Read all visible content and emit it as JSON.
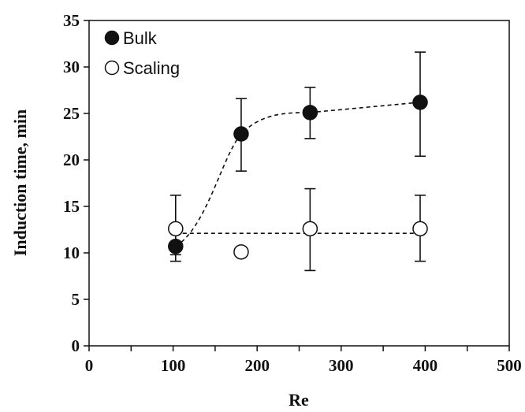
{
  "chart_data": {
    "type": "scatter",
    "title": "",
    "xlabel": "Re",
    "ylabel": "Induction  time,  min",
    "xlim": [
      0,
      500
    ],
    "ylim": [
      0,
      35
    ],
    "xticks": [
      0,
      100,
      200,
      300,
      400,
      500
    ],
    "yticks": [
      0,
      5,
      10,
      15,
      20,
      25,
      30,
      35
    ],
    "grid": false,
    "legend_position": "top-left",
    "series": [
      {
        "name": "Bulk",
        "marker": "filled-circle",
        "color": "#111111",
        "x": [
          103,
          181,
          263,
          394
        ],
        "y": [
          10.7,
          22.8,
          25.1,
          26.2
        ],
        "err_low": [
          9.1,
          18.8,
          22.3,
          20.4
        ],
        "err_high": [
          12.3,
          26.6,
          27.8,
          31.6
        ],
        "trend": "dashed-smooth"
      },
      {
        "name": "Scaling",
        "marker": "open-circle",
        "color": "#111111",
        "x": [
          103,
          181,
          263,
          394
        ],
        "y": [
          12.6,
          10.1,
          12.6,
          12.6
        ],
        "err_low": [
          9.8,
          null,
          8.1,
          9.1
        ],
        "err_high": [
          16.2,
          null,
          16.9,
          16.2
        ],
        "trend_y": 12.1
      }
    ]
  }
}
